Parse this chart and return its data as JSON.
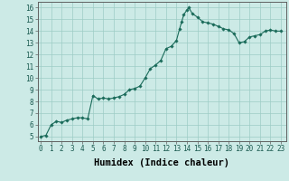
{
  "xlabel": "Humidex (Indice chaleur)",
  "ylabel": "",
  "x_values": [
    0,
    0.5,
    1,
    1.5,
    2,
    2.5,
    3,
    3.5,
    4,
    4.5,
    5,
    5.5,
    6,
    6.5,
    7,
    7.5,
    8,
    8.5,
    9,
    9.5,
    10,
    10.5,
    11,
    11.5,
    12,
    12.5,
    13,
    13.3,
    13.5,
    13.7,
    14,
    14.2,
    14.5,
    15,
    15.5,
    16,
    16.5,
    17,
    17.5,
    18,
    18.5,
    19,
    19.5,
    20,
    20.5,
    21,
    21.5,
    22,
    22.5,
    23
  ],
  "y_values": [
    5.0,
    5.1,
    6.0,
    6.3,
    6.2,
    6.4,
    6.5,
    6.6,
    6.6,
    6.5,
    8.5,
    8.2,
    8.3,
    8.2,
    8.3,
    8.4,
    8.6,
    9.0,
    9.1,
    9.3,
    10.0,
    10.8,
    11.1,
    11.5,
    12.5,
    12.7,
    13.2,
    14.2,
    14.8,
    15.4,
    15.8,
    16.0,
    15.5,
    15.2,
    14.8,
    14.7,
    14.6,
    14.4,
    14.2,
    14.1,
    13.8,
    13.0,
    13.1,
    13.5,
    13.6,
    13.7,
    14.0,
    14.1,
    14.0,
    14.0
  ],
  "line_color": "#1a6b5a",
  "marker": "D",
  "marker_size": 1.8,
  "line_width": 0.8,
  "bg_color": "#cceae6",
  "grid_color": "#9eccc6",
  "spine_color": "#606060",
  "xlim": [
    -0.3,
    23.5
  ],
  "ylim": [
    4.6,
    16.5
  ],
  "xticks": [
    0,
    1,
    2,
    3,
    4,
    5,
    6,
    7,
    8,
    9,
    10,
    11,
    12,
    13,
    14,
    15,
    16,
    17,
    18,
    19,
    20,
    21,
    22,
    23
  ],
  "yticks": [
    5,
    6,
    7,
    8,
    9,
    10,
    11,
    12,
    13,
    14,
    15,
    16
  ],
  "tick_fontsize": 5.5,
  "label_fontsize": 7.5
}
